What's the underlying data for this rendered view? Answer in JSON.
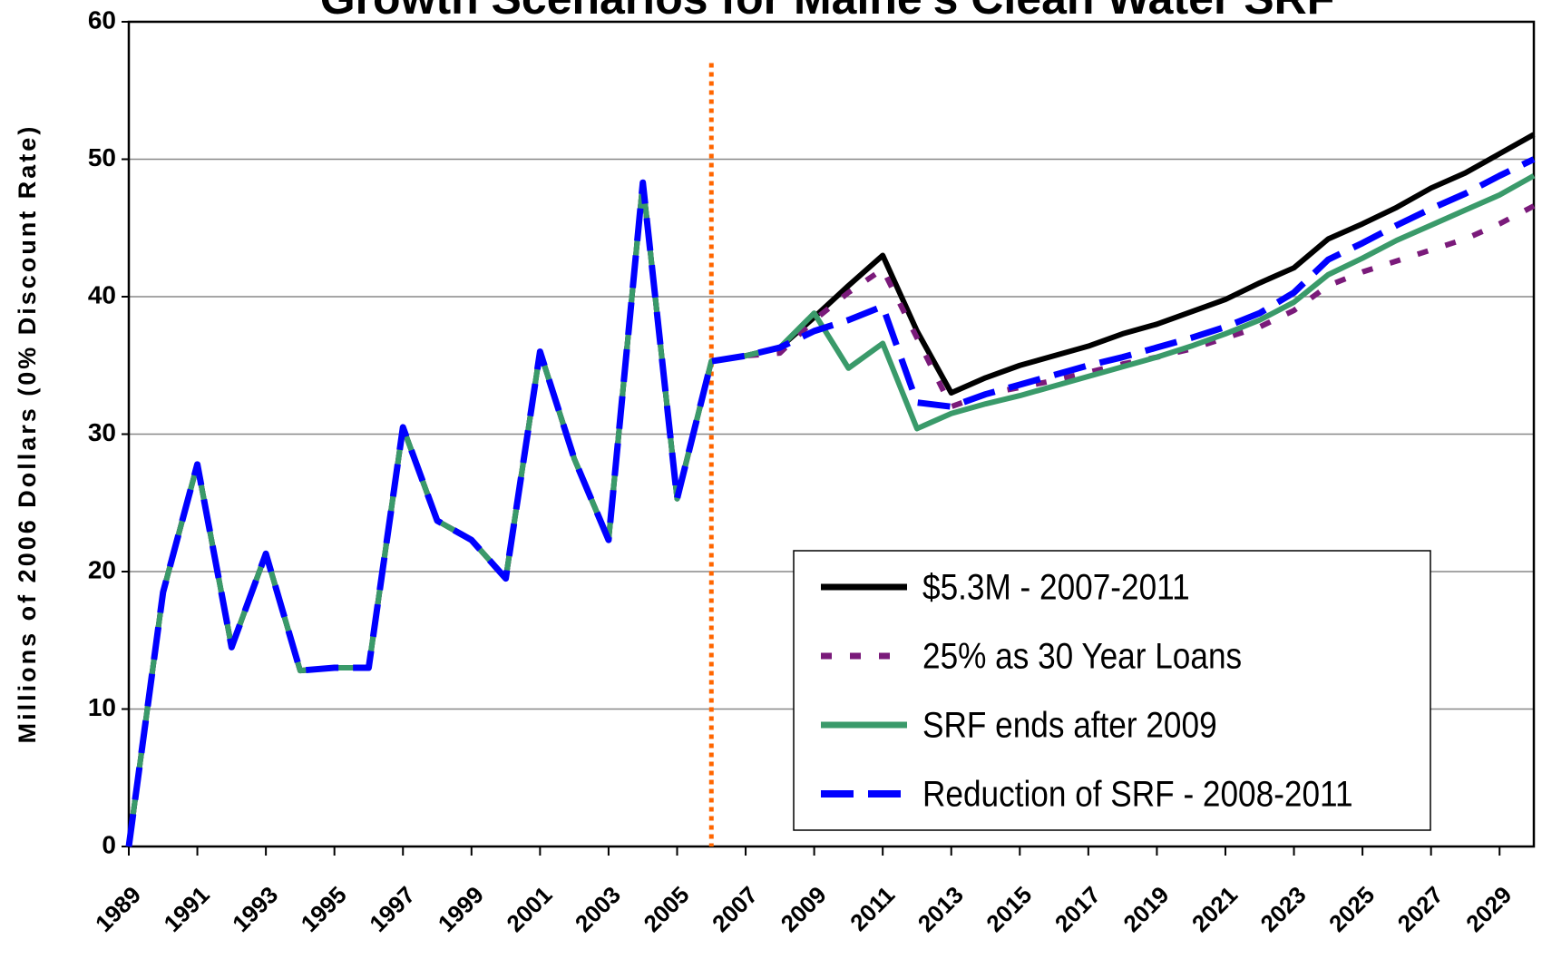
{
  "chart_data": {
    "type": "line",
    "title": "Growth Scenarios for Maine's Clean Water SRF",
    "ylabel": "Millions of 2006 Dollars (0% Discount Rate)",
    "x": [
      1989,
      1990,
      1991,
      1992,
      1993,
      1994,
      1995,
      1996,
      1997,
      1998,
      1999,
      2000,
      2001,
      2002,
      2003,
      2004,
      2005,
      2006,
      2007,
      2008,
      2009,
      2010,
      2011,
      2012,
      2013,
      2014,
      2015,
      2016,
      2017,
      2018,
      2019,
      2020,
      2021,
      2022,
      2023,
      2024,
      2025,
      2026,
      2027,
      2028,
      2029,
      2030
    ],
    "series": [
      {
        "name": "$5.3M - 2007-2011",
        "color": "#000000",
        "dash": "solid",
        "values": [
          0,
          18.5,
          27.8,
          14.5,
          21.3,
          12.8,
          13,
          13,
          30.5,
          23.7,
          22.3,
          19.5,
          36,
          28.2,
          22.3,
          48.3,
          25.3,
          35.3,
          35.7,
          36.3,
          38.5,
          40.8,
          43,
          37.5,
          33,
          34.1,
          35,
          35.7,
          36.4,
          37.3,
          38,
          38.9,
          39.8,
          41,
          42.1,
          44.2,
          45.3,
          46.5,
          47.9,
          49,
          50.4,
          51.8
        ]
      },
      {
        "name": "25% as 30 Year Loans",
        "color": "#7a1a7a",
        "dash": "dot",
        "values": [
          0,
          18.5,
          27.8,
          14.5,
          21.3,
          12.8,
          13,
          13,
          30.5,
          23.7,
          22.3,
          19.5,
          36,
          28.2,
          22.3,
          48.3,
          25.3,
          35.3,
          35.7,
          35.9,
          38.3,
          40.3,
          42,
          37,
          32,
          32.9,
          33.4,
          33.9,
          34.5,
          35.1,
          35.6,
          36.2,
          37,
          37.8,
          39,
          40.8,
          41.8,
          42.6,
          43.4,
          44.2,
          45.3,
          46.6
        ]
      },
      {
        "name": "SRF ends after 2009",
        "color": "#3a9a6a",
        "dash": "solid",
        "values": [
          0,
          18.5,
          27.8,
          14.5,
          21.3,
          12.8,
          13,
          13,
          30.5,
          23.7,
          22.3,
          19.5,
          36,
          28.2,
          22.3,
          48.3,
          25.3,
          35.3,
          35.7,
          36.3,
          38.8,
          34.8,
          36.6,
          30.4,
          31.5,
          32.2,
          32.8,
          33.5,
          34.2,
          34.9,
          35.6,
          36.4,
          37.3,
          38.3,
          39.6,
          41.6,
          42.8,
          44.1,
          45.2,
          46.3,
          47.4,
          48.8
        ]
      },
      {
        "name": "Reduction of SRF - 2008-2011",
        "color": "#0000ff",
        "dash": "dash",
        "values": [
          0,
          18.5,
          27.8,
          14.5,
          21.3,
          12.8,
          13,
          13,
          30.5,
          23.7,
          22.3,
          19.5,
          36,
          28.2,
          22.3,
          48.3,
          25.3,
          35.3,
          35.7,
          36.3,
          37.5,
          38.3,
          39.3,
          32.3,
          32,
          32.9,
          33.6,
          34.3,
          35,
          35.6,
          36.3,
          37,
          37.8,
          38.8,
          40.3,
          42.7,
          43.9,
          45.2,
          46.4,
          47.5,
          48.8,
          50
        ]
      }
    ],
    "xlim": [
      1989,
      2030
    ],
    "xticks": [
      1989,
      1991,
      1993,
      1995,
      1997,
      1999,
      2001,
      2003,
      2005,
      2007,
      2009,
      2011,
      2013,
      2015,
      2017,
      2019,
      2021,
      2023,
      2025,
      2027,
      2029
    ],
    "ylim": [
      0,
      60
    ],
    "yticks": [
      0,
      10,
      20,
      30,
      40,
      50,
      60
    ],
    "grid": true,
    "divider_x": 2006,
    "divider_color": "#ff6600",
    "legend": "lower right"
  }
}
